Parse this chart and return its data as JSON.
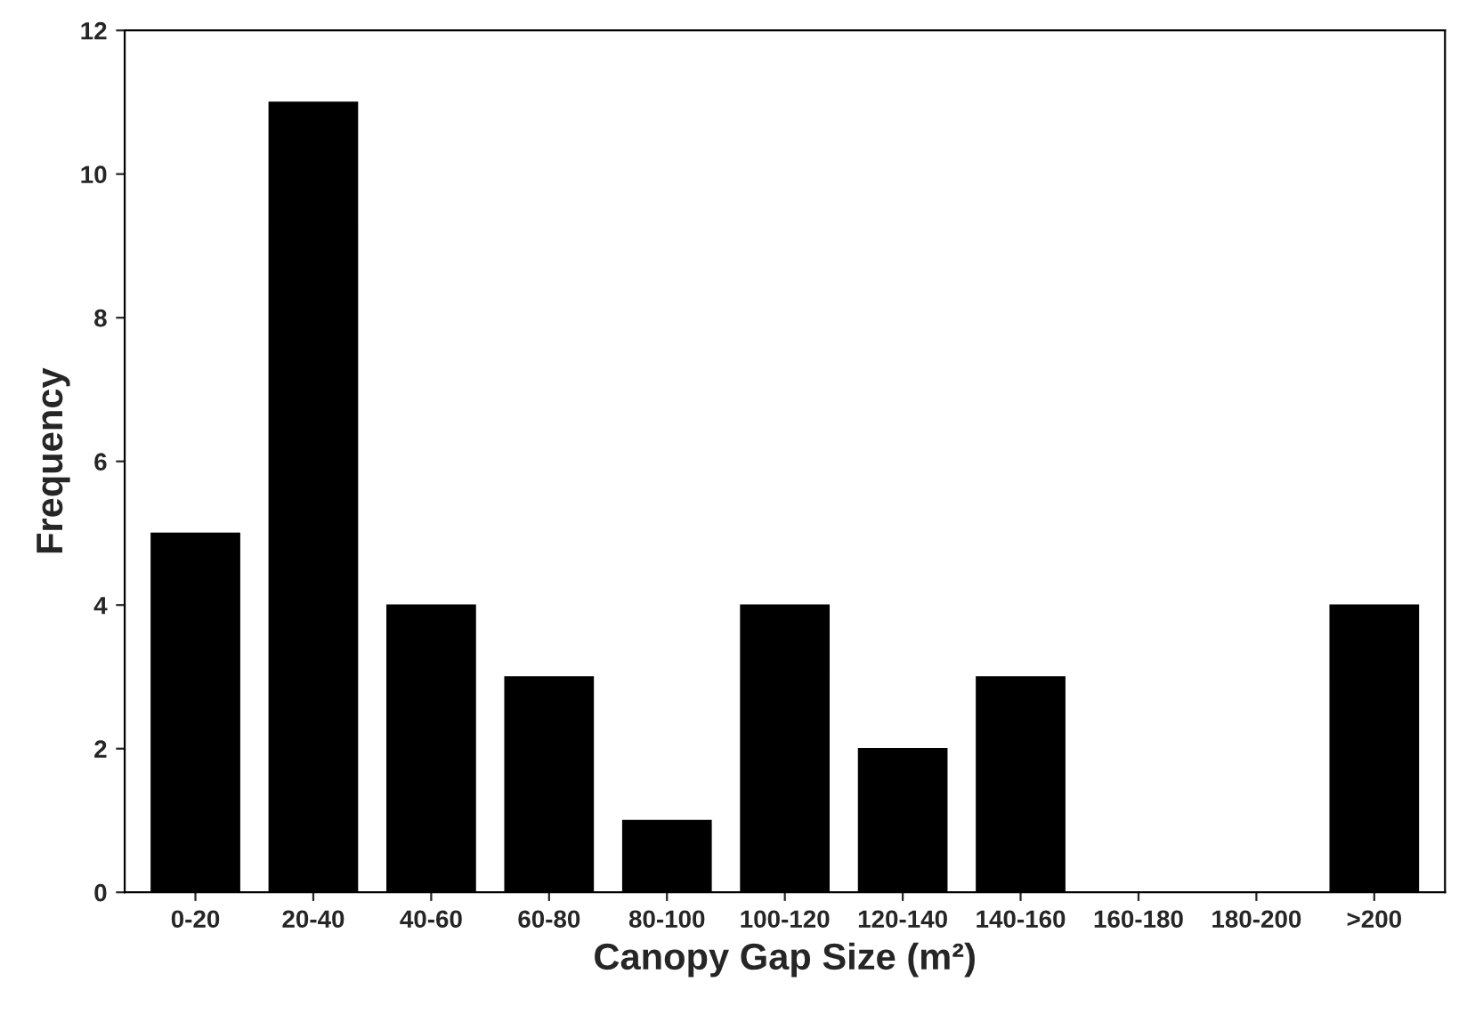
{
  "chart_data": {
    "type": "bar",
    "xlabel": "Canopy Gap Size (m²)",
    "ylabel": "Frequency",
    "categories": [
      "0-20",
      "20-40",
      "40-60",
      "60-80",
      "80-100",
      "100-120",
      "120-140",
      "140-160",
      "160-180",
      "180-200",
      ">200"
    ],
    "values": [
      5,
      11,
      4,
      3,
      1,
      4,
      2,
      3,
      0,
      0,
      4
    ],
    "color": "#000000",
    "ylim": [
      0,
      12
    ],
    "yticks": [
      0,
      2,
      4,
      6,
      8,
      10,
      12
    ],
    "grid": false
  }
}
